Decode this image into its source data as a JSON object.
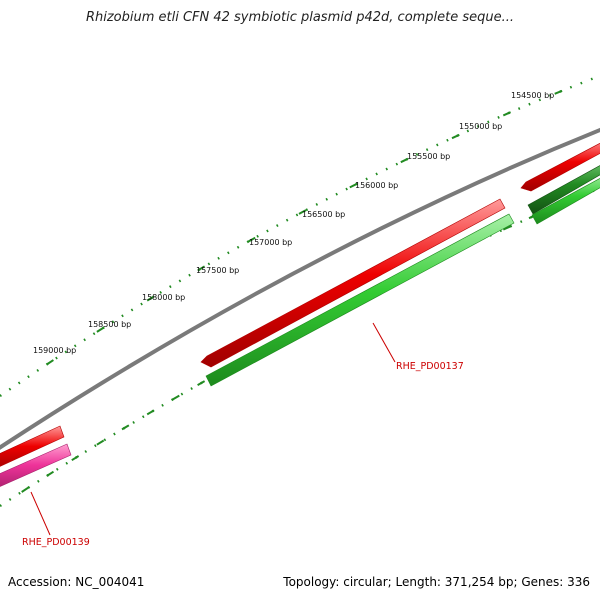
{
  "title": "Rhizobium etli CFN 42 symbiotic plasmid p42d, complete seque...",
  "ticks": [
    {
      "label": "154500 bp"
    },
    {
      "label": "155000 bp"
    },
    {
      "label": "155500 bp"
    },
    {
      "label": "156000 bp"
    },
    {
      "label": "156500 bp"
    },
    {
      "label": "157000 bp"
    },
    {
      "label": "157500 bp"
    },
    {
      "label": "158000 bp"
    },
    {
      "label": "158500 bp"
    },
    {
      "label": "159000 bp"
    }
  ],
  "genes": [
    {
      "label": "RHE_PD00137"
    },
    {
      "label": "RHE_PD00139"
    }
  ],
  "colors": {
    "backbone": "#7a7a7a",
    "forward_gene": "#ee0000",
    "reverse_gene": "#33cc33",
    "reverse_gene_dark": "#228b22",
    "pink_gene": "#ee3399",
    "tick": "#228b22",
    "gene_label": "#cc0000"
  },
  "footer": {
    "accession": "Accession: NC_004041",
    "summary": "Topology: circular; Length: 371,254 bp; Genes: 336"
  }
}
